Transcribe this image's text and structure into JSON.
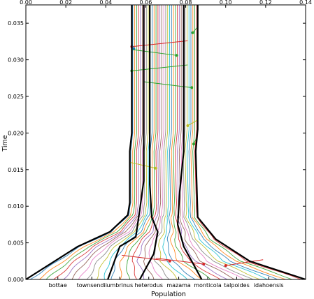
{
  "chart_data": {
    "type": "line",
    "title": "",
    "xlabel": "Population",
    "ylabel": "Time",
    "top_axis": {
      "range": [
        0,
        0.14
      ],
      "ticks": [
        0,
        0.02,
        0.04,
        0.06,
        0.08,
        0.1,
        0.12,
        0.14
      ],
      "tick_labels": [
        "0.00",
        "0.02",
        "0.04",
        "0.06",
        "0.08",
        "0.10",
        "0.12",
        "0.14"
      ]
    },
    "y_axis": {
      "range": [
        0,
        0.0375
      ],
      "ticks": [
        0,
        0.005,
        0.01,
        0.015,
        0.02,
        0.025,
        0.03,
        0.035
      ],
      "tick_labels": [
        "0.000",
        "0.005",
        "0.010",
        "0.015",
        "0.020",
        "0.025",
        "0.030",
        "0.035"
      ]
    },
    "categories": [
      "bottae",
      "townsendii",
      "umbrinus",
      "heterodus",
      "mazama",
      "monticola",
      "talpoides",
      "idahoensis"
    ],
    "category_centers": [
      0.016,
      0.033,
      0.047,
      0.0615,
      0.0765,
      0.091,
      0.1055,
      0.1215
    ],
    "boundaries": [
      {
        "name": "outer-left",
        "points": [
          [
            0.0,
            0.0
          ],
          [
            0.026,
            0.0045
          ],
          [
            0.042,
            0.0065
          ],
          [
            0.051,
            0.0088
          ],
          [
            0.052,
            0.0105
          ],
          [
            0.052,
            0.0175
          ],
          [
            0.053,
            0.02
          ],
          [
            0.053,
            0.0375
          ]
        ]
      },
      {
        "name": "inner-left",
        "points": [
          [
            0.041,
            0.0
          ],
          [
            0.047,
            0.0045
          ],
          [
            0.055,
            0.0058
          ],
          [
            0.057,
            0.0095
          ],
          [
            0.059,
            0.0135
          ],
          [
            0.059,
            0.0375
          ]
        ]
      },
      {
        "name": "inner-mid",
        "points": [
          [
            0.057,
            0.0
          ],
          [
            0.064,
            0.0035
          ],
          [
            0.066,
            0.0065
          ],
          [
            0.063,
            0.0085
          ],
          [
            0.062,
            0.013
          ],
          [
            0.062,
            0.0375
          ]
        ]
      },
      {
        "name": "inner-right",
        "points": [
          [
            0.088,
            0.0
          ],
          [
            0.079,
            0.0045
          ],
          [
            0.076,
            0.0075
          ],
          [
            0.077,
            0.012
          ],
          [
            0.079,
            0.0175
          ],
          [
            0.079,
            0.0375
          ]
        ]
      },
      {
        "name": "outer-right",
        "points": [
          [
            0.14,
            0.0
          ],
          [
            0.112,
            0.0025
          ],
          [
            0.095,
            0.0055
          ],
          [
            0.086,
            0.0085
          ],
          [
            0.085,
            0.0175
          ],
          [
            0.086,
            0.0205
          ],
          [
            0.086,
            0.0375
          ]
        ]
      }
    ],
    "lineage_count": 34,
    "lineage_colors": [
      "#1f77b4",
      "#ff7f0e",
      "#2ca02c",
      "#d62728",
      "#9467bd",
      "#8c564b",
      "#e377c2",
      "#7f7f7f",
      "#bcbd22",
      "#17becf"
    ],
    "migration_points": [
      {
        "x": 0.053,
        "y": 0.0318,
        "color": "#d62728"
      },
      {
        "x": 0.054,
        "y": 0.0315,
        "color": "#1f77b4"
      },
      {
        "x": 0.0835,
        "y": 0.0337,
        "color": "#2ca02c"
      },
      {
        "x": 0.0755,
        "y": 0.0306,
        "color": "#2ca02c"
      },
      {
        "x": 0.053,
        "y": 0.0285,
        "color": "#2ca02c"
      },
      {
        "x": 0.083,
        "y": 0.0262,
        "color": "#2ca02c"
      },
      {
        "x": 0.081,
        "y": 0.021,
        "color": "#bcbd22"
      },
      {
        "x": 0.065,
        "y": 0.0152,
        "color": "#bcbd22"
      },
      {
        "x": 0.084,
        "y": 0.0185,
        "color": "#2ca02c"
      },
      {
        "x": 0.089,
        "y": 0.0021,
        "color": "#d62728"
      },
      {
        "x": 0.1,
        "y": 0.0019,
        "color": "#d62728"
      },
      {
        "x": 0.072,
        "y": 0.0025,
        "color": "#d62728"
      }
    ]
  }
}
